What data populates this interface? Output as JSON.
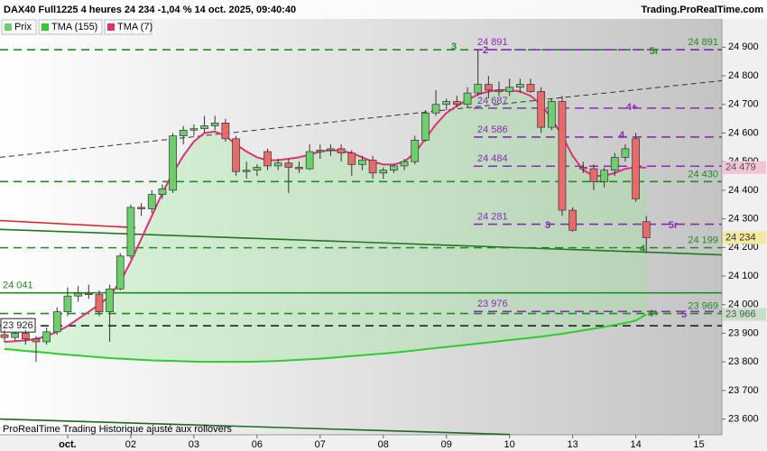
{
  "chart_data": {
    "type": "candlestick",
    "title": "DAX40 Full1225 4 heures 24 234 -1,04 % 14 oct. 2025, 09:40:40",
    "source": "Trading.ProRealTime.com",
    "footer": "ProRealTime Trading  Historique ajusté aux rollovers",
    "price_name": "Prix",
    "up_color": "#6ccf6c",
    "down_color": "#e86a6a",
    "close_tag": "24 234",
    "categories": [
      null,
      null,
      null,
      null,
      null,
      null,
      "oct.",
      null,
      null,
      null,
      null,
      null,
      "02",
      null,
      null,
      null,
      null,
      null,
      "03",
      null,
      null,
      null,
      null,
      null,
      "06",
      null,
      null,
      null,
      null,
      null,
      "07",
      null,
      null,
      null,
      null,
      null,
      "08",
      null,
      null,
      null,
      null,
      null,
      "09",
      null,
      null,
      null,
      null,
      null,
      "10",
      null,
      null,
      null,
      null,
      null,
      "13",
      null,
      null,
      null,
      null,
      null,
      "14",
      null,
      null,
      null,
      null,
      null,
      "15"
    ],
    "open": [
      23895,
      23885,
      23900,
      23880,
      23870,
      23905,
      23975,
      24030,
      24040,
      24035,
      23975,
      24055,
      24170,
      24340,
      24335,
      24385,
      24400,
      24590,
      24610,
      24615,
      24625,
      24635,
      24580,
      24465,
      24470,
      24535,
      24485,
      24495,
      24480,
      24475,
      24535,
      24540,
      24545,
      24530,
      24490,
      24505,
      24460,
      24470,
      24485,
      24500,
      24575,
      24670,
      24700,
      24710,
      24700,
      24740,
      24770,
      24750,
      24745,
      24760,
      24770,
      24745,
      24620,
      24710,
      24330,
      24480,
      24475,
      24430,
      24470,
      24515,
      24580,
      24290,
      null,
      null,
      null,
      null,
      null
    ],
    "high": [
      23910,
      23905,
      23910,
      23890,
      23920,
      23990,
      24060,
      24065,
      24070,
      24050,
      24070,
      24180,
      24350,
      24355,
      24400,
      24420,
      24600,
      24625,
      24630,
      24660,
      24660,
      24650,
      24590,
      24500,
      24490,
      24545,
      24510,
      24510,
      24500,
      24560,
      24560,
      24560,
      24560,
      24540,
      24520,
      24520,
      24480,
      24490,
      24510,
      24590,
      24680,
      24750,
      24720,
      24730,
      24760,
      24890,
      24800,
      24780,
      24790,
      24790,
      24790,
      24760,
      24720,
      24730,
      24340,
      24500,
      24490,
      24480,
      24530,
      24560,
      24600,
      24310,
      null,
      null,
      null,
      null,
      null
    ],
    "low": [
      23870,
      23875,
      23860,
      23800,
      23860,
      23895,
      23960,
      24010,
      24020,
      23960,
      23870,
      24050,
      24160,
      24310,
      24320,
      24370,
      24390,
      24560,
      24590,
      24600,
      24610,
      24570,
      24450,
      24440,
      24450,
      24470,
      24470,
      24390,
      24460,
      24470,
      24510,
      24520,
      24500,
      24450,
      24470,
      24440,
      24440,
      24460,
      24470,
      24490,
      24570,
      24660,
      24680,
      24690,
      24690,
      24730,
      24720,
      24730,
      24730,
      24740,
      24740,
      24600,
      24610,
      24310,
      24255,
      24460,
      24400,
      24410,
      24450,
      24500,
      24360,
      24180,
      null,
      null,
      null,
      null,
      null
    ],
    "close": [
      23885,
      23900,
      23880,
      23870,
      23905,
      23975,
      24030,
      24040,
      24035,
      23975,
      24055,
      24170,
      24340,
      24335,
      24385,
      24405,
      24590,
      24610,
      24615,
      24625,
      24635,
      24580,
      24465,
      24470,
      24480,
      24485,
      24495,
      24480,
      24475,
      24535,
      24540,
      24545,
      24530,
      24490,
      24505,
      24460,
      24470,
      24485,
      24500,
      24575,
      24670,
      24700,
      24710,
      24700,
      24740,
      24770,
      24750,
      24745,
      24760,
      24770,
      24745,
      24620,
      24710,
      24330,
      24260,
      24475,
      24430,
      24470,
      24515,
      24545,
      24370,
      24234,
      null,
      null,
      null,
      null,
      null
    ],
    "series": [
      {
        "name": "TMA (155)",
        "color": "#2ecc2e",
        "tag": "23 966",
        "values": [
          23845,
          23842,
          23838,
          23835,
          23832,
          23828,
          23825,
          23822,
          23819,
          23816,
          23813,
          23811,
          23809,
          23807,
          23805,
          23804,
          23803,
          23802,
          23801,
          23800,
          23800,
          23800,
          23800,
          23800,
          23801,
          23802,
          23803,
          23805,
          23807,
          23809,
          23811,
          23814,
          23817,
          23820,
          23823,
          23826,
          23829,
          23832,
          23836,
          23840,
          23844,
          23848,
          23852,
          23856,
          23860,
          23864,
          23868,
          23872,
          23876,
          23880,
          23884,
          23888,
          23893,
          23898,
          23904,
          23910,
          23916,
          23922,
          23929,
          23936,
          23944,
          23966,
          null,
          null,
          null,
          null,
          null
        ]
      },
      {
        "name": "TMA (7)",
        "color": "#e0307a",
        "tag": "24 479",
        "values": [
          23870,
          23872,
          23875,
          23880,
          23890,
          23905,
          23925,
          23950,
          23975,
          24000,
          24030,
          24080,
          24150,
          24230,
          24310,
          24390,
          24460,
          24520,
          24570,
          24600,
          24605,
          24590,
          24560,
          24535,
          24515,
          24505,
          24505,
          24510,
          24515,
          24525,
          24535,
          24540,
          24538,
          24530,
          24515,
          24500,
          24490,
          24490,
          24500,
          24530,
          24580,
          24630,
          24670,
          24695,
          24715,
          24735,
          24745,
          24750,
          24750,
          24745,
          24730,
          24700,
          24650,
          24590,
          24520,
          24470,
          24450,
          24450,
          24460,
          24475,
          24480,
          24479,
          null,
          null,
          null,
          null,
          null
        ]
      }
    ],
    "ylim": [
      23545,
      25065
    ],
    "yticks": [
      {
        "value": 23600,
        "label": "23 600"
      },
      {
        "value": 23700,
        "label": "23 700"
      },
      {
        "value": 23800,
        "label": "23 800"
      },
      {
        "value": 23900,
        "label": "23 900"
      },
      {
        "value": 24000,
        "label": "24 000"
      },
      {
        "value": 24100,
        "label": "24 100"
      },
      {
        "value": 24200,
        "label": "24 200"
      },
      {
        "value": 24300,
        "label": "24 300"
      },
      {
        "value": 24400,
        "label": "24 400"
      },
      {
        "value": 24500,
        "label": "24 500"
      },
      {
        "value": 24600,
        "label": "24 600"
      },
      {
        "value": 24700,
        "label": "24 700"
      },
      {
        "value": 24800,
        "label": "24 800"
      },
      {
        "value": 24900,
        "label": "24 900"
      }
    ],
    "levels": [
      {
        "value": 24891,
        "label": "24 891",
        "color": "#1e8c1e",
        "dash": true,
        "label_position": "right"
      },
      {
        "value": 24430,
        "label": "24 430",
        "color": "#1e8c1e",
        "dash": true,
        "label_position": "right"
      },
      {
        "value": 24199,
        "label": "24 199",
        "color": "#1e8c1e",
        "dash": true,
        "label_position": "right"
      },
      {
        "value": 23969,
        "label": "23 969",
        "color": "#1e8c1e",
        "dash": true,
        "label_position": "right"
      },
      {
        "value": 24891,
        "label": "24 891",
        "color": "#8a2ab8",
        "dash": true,
        "label_position": "center"
      },
      {
        "value": 24687,
        "label": "24 687",
        "color": "#8a2ab8",
        "dash": true,
        "label_position": "center"
      },
      {
        "value": 24586,
        "label": "24 586",
        "color": "#8a2ab8",
        "dash": true,
        "label_position": "center"
      },
      {
        "value": 24484,
        "label": "24 484",
        "color": "#8a2ab8",
        "dash": true,
        "label_position": "center"
      },
      {
        "value": 24281,
        "label": "24 281",
        "color": "#8a2ab8",
        "dash": true,
        "label_position": "center"
      },
      {
        "value": 23976,
        "label": "23 976",
        "color": "#8a2ab8",
        "dash": true,
        "label_position": "center"
      },
      {
        "value": 24041,
        "label": "24 041",
        "color": "#1e8c1e",
        "dash": false,
        "label_position": "left"
      },
      {
        "value": 23926,
        "label": "23 926",
        "color": "#222222",
        "dash": true,
        "label_position": "left"
      }
    ],
    "trendlines": [
      {
        "values": [
          24515,
          24783
        ],
        "color": "#333333",
        "dash": true
      },
      {
        "values": [
          24263,
          24174
        ],
        "color": "#1e7a1e",
        "dash": false
      },
      {
        "values": [
          24294,
          24269
        ],
        "color": "#e02020",
        "dash": false
      },
      {
        "values": [
          23600,
          23546
        ],
        "color": "#1e6a1e",
        "dash": false
      }
    ],
    "annotations": [
      {
        "text": "3",
        "color": "#1e8c1e"
      },
      {
        "text": "2",
        "color": "#8a2ab8"
      },
      {
        "text": "5r",
        "color": "#1e8c1e"
      },
      {
        "text": "4+",
        "color": "#8a2ab8"
      },
      {
        "text": "4",
        "color": "#8a2ab8"
      },
      {
        "text": "3",
        "color": "#8a2ab8"
      },
      {
        "text": "5r",
        "color": "#8a2ab8"
      },
      {
        "text": "4",
        "color": "#1e8c1e"
      },
      {
        "text": "4+",
        "color": "#1e8c1e"
      },
      {
        "text": "5",
        "color": "#8a2ab8"
      }
    ]
  }
}
